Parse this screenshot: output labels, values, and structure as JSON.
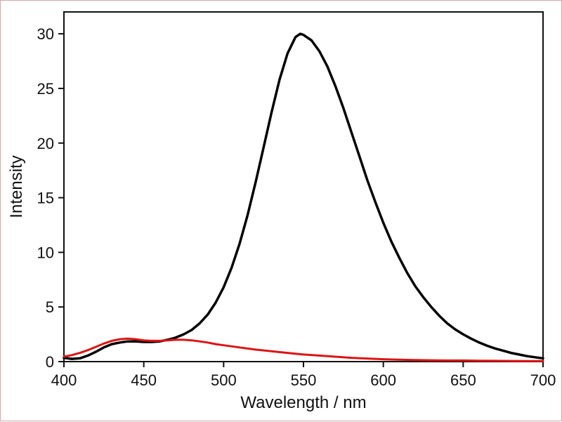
{
  "page": {
    "background": "#ffffff",
    "border_color": "#d9a7a7",
    "axis_color": "#111111"
  },
  "chart_data": {
    "type": "line",
    "title": "",
    "xlabel": "Wavelength / nm",
    "ylabel": "Intensity",
    "xlim": [
      400,
      700
    ],
    "ylim": [
      0,
      32
    ],
    "xticks": [
      400,
      450,
      500,
      550,
      600,
      650,
      700
    ],
    "yticks": [
      0,
      5,
      10,
      15,
      20,
      25,
      30
    ],
    "grid": false,
    "legend": "none",
    "series": [
      {
        "name": "black-emission",
        "color": "#000000",
        "width": 3.5,
        "x": [
          400,
          405,
          410,
          415,
          420,
          425,
          430,
          435,
          440,
          445,
          450,
          455,
          460,
          465,
          470,
          475,
          480,
          485,
          490,
          495,
          500,
          505,
          510,
          515,
          520,
          525,
          530,
          535,
          540,
          545,
          548,
          550,
          555,
          560,
          565,
          570,
          575,
          580,
          585,
          590,
          595,
          600,
          605,
          610,
          615,
          620,
          625,
          630,
          635,
          640,
          645,
          650,
          655,
          660,
          665,
          670,
          675,
          680,
          685,
          690,
          695,
          700
        ],
        "y": [
          0.35,
          0.25,
          0.3,
          0.55,
          0.9,
          1.3,
          1.6,
          1.75,
          1.85,
          1.85,
          1.8,
          1.8,
          1.85,
          2.0,
          2.2,
          2.5,
          2.9,
          3.5,
          4.3,
          5.4,
          6.8,
          8.6,
          10.8,
          13.4,
          16.4,
          19.6,
          22.8,
          25.8,
          28.2,
          29.7,
          30.0,
          29.9,
          29.4,
          28.4,
          27.0,
          25.2,
          23.2,
          21.0,
          18.8,
          16.6,
          14.6,
          12.7,
          11.0,
          9.5,
          8.1,
          6.9,
          5.9,
          5.0,
          4.2,
          3.5,
          2.95,
          2.5,
          2.1,
          1.75,
          1.45,
          1.2,
          1.0,
          0.8,
          0.65,
          0.5,
          0.4,
          0.3
        ]
      },
      {
        "name": "red-emission",
        "color": "#dd1414",
        "width": 3,
        "x": [
          400,
          405,
          410,
          415,
          420,
          425,
          430,
          435,
          440,
          445,
          450,
          455,
          460,
          465,
          470,
          475,
          480,
          485,
          490,
          495,
          500,
          510,
          520,
          530,
          540,
          550,
          560,
          570,
          580,
          590,
          600,
          610,
          620,
          630,
          640,
          650,
          660,
          670,
          680,
          690,
          700
        ],
        "y": [
          0.45,
          0.6,
          0.8,
          1.05,
          1.35,
          1.65,
          1.9,
          2.05,
          2.1,
          2.05,
          1.95,
          1.9,
          1.9,
          1.95,
          2.0,
          2.0,
          1.95,
          1.85,
          1.75,
          1.6,
          1.5,
          1.3,
          1.1,
          0.95,
          0.8,
          0.65,
          0.55,
          0.45,
          0.35,
          0.28,
          0.22,
          0.18,
          0.15,
          0.12,
          0.1,
          0.1,
          0.08,
          0.07,
          0.06,
          0.05,
          0.05
        ]
      }
    ]
  }
}
